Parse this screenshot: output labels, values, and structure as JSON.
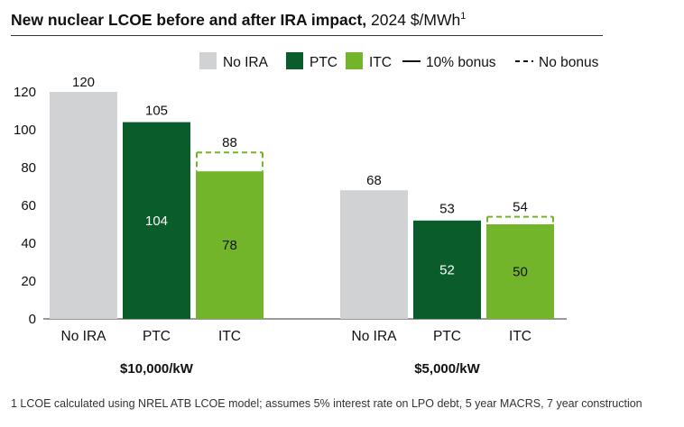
{
  "title_bold": "New nuclear LCOE before and after IRA impact,",
  "title_normal": " 2024 $/MWh",
  "title_superscript": "1",
  "footnote": "1 LCOE calculated using NREL ATB LCOE model; assumes 5% interest rate on LPO debt, 5 year MACRS, 7 year construction",
  "chart_data": {
    "type": "bar",
    "ylim": [
      0,
      120
    ],
    "yticks": [
      0,
      20,
      40,
      60,
      80,
      100,
      120
    ],
    "grid": false,
    "legend_position": "top-right",
    "legend": [
      {
        "label": "No IRA",
        "kind": "swatch",
        "color": "#d1d2d4"
      },
      {
        "label": "PTC",
        "kind": "swatch",
        "color": "#0a5c2a"
      },
      {
        "label": "ITC",
        "kind": "swatch",
        "color": "#72b52b"
      },
      {
        "label": "10% bonus",
        "kind": "solid-line",
        "color": "#111111"
      },
      {
        "label": "No bonus",
        "kind": "dashed-line",
        "color": "#111111"
      }
    ],
    "groups": [
      {
        "label": "$10,000/kW",
        "bars": [
          {
            "category": "No IRA",
            "value": 120,
            "top_label": "120",
            "color": "#d1d2d4"
          },
          {
            "category": "PTC",
            "value": 104,
            "inner_label": "104",
            "no_bonus": 105,
            "top_label": "105",
            "color": "#0a5c2a",
            "dash_color": "#ffffff"
          },
          {
            "category": "ITC",
            "value": 78,
            "inner_label": "78",
            "no_bonus": 88,
            "top_label": "88",
            "color": "#72b52b",
            "dash_color": "#72b52b"
          }
        ]
      },
      {
        "label": "$5,000/kW",
        "bars": [
          {
            "category": "No IRA",
            "value": 68,
            "top_label": "68",
            "color": "#d1d2d4"
          },
          {
            "category": "PTC",
            "value": 52,
            "inner_label": "52",
            "no_bonus": 53,
            "top_label": "53",
            "color": "#0a5c2a",
            "dash_color": "#ffffff"
          },
          {
            "category": "ITC",
            "value": 50,
            "inner_label": "50",
            "no_bonus": 54,
            "top_label": "54",
            "color": "#72b52b",
            "dash_color": "#72b52b"
          }
        ]
      }
    ]
  }
}
